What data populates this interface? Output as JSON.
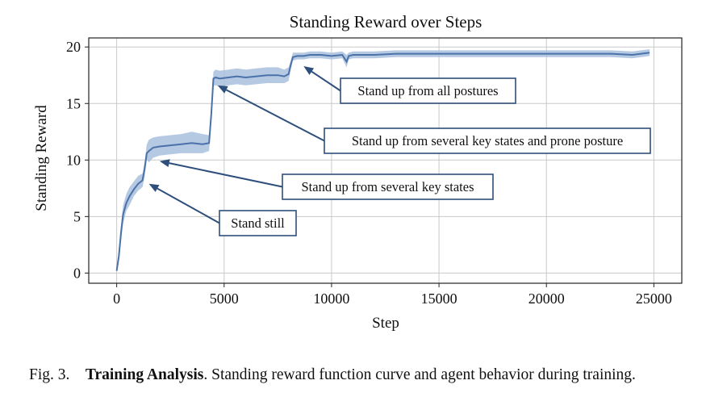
{
  "chart_data": {
    "type": "line",
    "title": "Standing Reward over Steps",
    "xlabel": "Step",
    "ylabel": "Standing Reward",
    "xlim": [
      -1300,
      26300
    ],
    "ylim": [
      -0.9,
      20.8
    ],
    "xticks": [
      0,
      5000,
      10000,
      15000,
      20000,
      25000
    ],
    "yticks": [
      0,
      5,
      10,
      15,
      20
    ],
    "grid": true,
    "line_color": "#4a72a9",
    "band_color": "#a9c0de",
    "series": [
      {
        "x": [
          0,
          100,
          200,
          300,
          450,
          600,
          800,
          1000,
          1200,
          1300,
          1400,
          1500,
          1700,
          2000,
          2500,
          3000,
          3500,
          4000,
          4300,
          4400,
          4500,
          4600,
          4800,
          5200,
          5600,
          6000,
          6500,
          7000,
          7500,
          7800,
          8000,
          8100,
          8200,
          8400,
          8700,
          9000,
          9500,
          10000,
          10500,
          10700,
          10800,
          11000,
          12000,
          13000,
          14000,
          15000,
          16000,
          17000,
          18000,
          19000,
          20000,
          21000,
          22000,
          23000,
          24000,
          24800
        ],
        "values": [
          0.2,
          1.5,
          3.5,
          5.2,
          6.2,
          6.8,
          7.4,
          7.9,
          8.2,
          9.2,
          10.6,
          10.8,
          11.1,
          11.2,
          11.3,
          11.4,
          11.5,
          11.4,
          11.5,
          14.0,
          17.2,
          17.3,
          17.2,
          17.3,
          17.4,
          17.3,
          17.4,
          17.5,
          17.5,
          17.4,
          17.6,
          18.4,
          19.1,
          19.2,
          19.2,
          19.3,
          19.3,
          19.2,
          19.3,
          18.7,
          19.2,
          19.3,
          19.3,
          19.4,
          19.4,
          19.4,
          19.4,
          19.4,
          19.4,
          19.4,
          19.4,
          19.4,
          19.4,
          19.4,
          19.3,
          19.5
        ],
        "lower": [
          0.1,
          1.0,
          2.8,
          4.4,
          5.5,
          6.0,
          6.8,
          7.3,
          7.6,
          8.5,
          10.0,
          9.8,
          10.2,
          10.4,
          10.5,
          10.6,
          10.6,
          10.6,
          10.8,
          13.5,
          16.6,
          16.6,
          16.5,
          16.6,
          16.7,
          16.6,
          16.7,
          16.8,
          16.8,
          16.8,
          17.0,
          18.0,
          18.8,
          18.9,
          18.9,
          19.0,
          19.0,
          18.9,
          19.0,
          18.2,
          18.9,
          19.0,
          19.0,
          19.1,
          19.1,
          19.1,
          19.1,
          19.1,
          19.1,
          19.1,
          19.1,
          19.1,
          19.1,
          19.1,
          19.0,
          19.2
        ],
        "upper": [
          0.3,
          2.0,
          4.2,
          6.0,
          7.0,
          7.6,
          8.1,
          8.6,
          8.8,
          9.8,
          11.4,
          11.8,
          12.0,
          12.1,
          12.2,
          12.3,
          12.5,
          12.3,
          12.2,
          14.6,
          17.8,
          18.0,
          17.9,
          18.0,
          18.1,
          18.0,
          18.1,
          18.2,
          18.2,
          18.0,
          18.2,
          18.8,
          19.5,
          19.5,
          19.5,
          19.6,
          19.6,
          19.5,
          19.6,
          19.3,
          19.5,
          19.6,
          19.6,
          19.7,
          19.7,
          19.7,
          19.7,
          19.7,
          19.7,
          19.7,
          19.7,
          19.7,
          19.7,
          19.7,
          19.6,
          19.8
        ]
      }
    ],
    "annotations": [
      {
        "text": "Stand up from all postures",
        "x": 8700,
        "y": 18.3
      },
      {
        "text": "Stand up from several key states and prone posture",
        "x": 4700,
        "y": 16.6
      },
      {
        "text": "Stand up from several key states",
        "x": 2000,
        "y": 9.9
      },
      {
        "text": "Stand still",
        "x": 1500,
        "y": 7.9
      }
    ]
  },
  "caption": {
    "fig_label": "Fig. 3.",
    "bold_text": "Training Analysis",
    "text": ". Standing reward function curve and agent behavior during training."
  }
}
